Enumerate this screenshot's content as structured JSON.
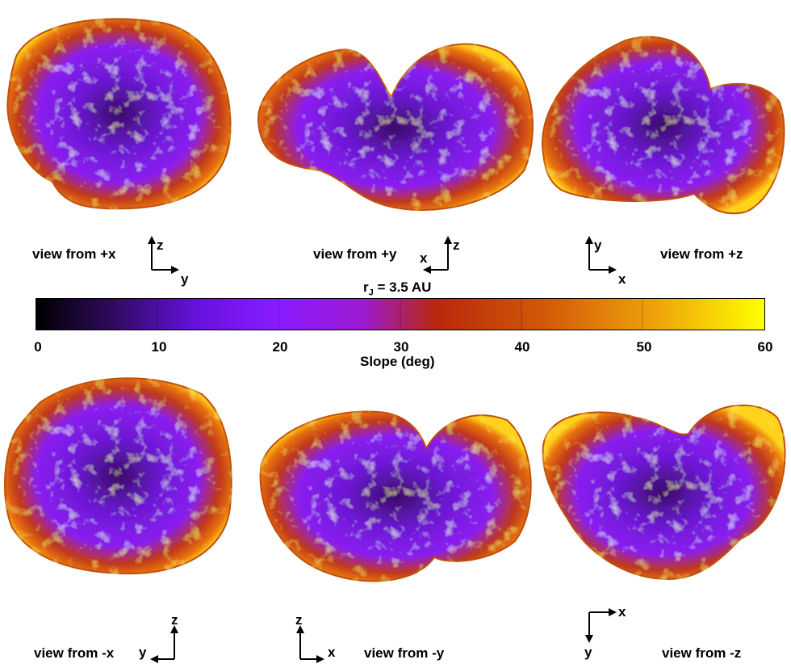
{
  "colorbar": {
    "title_main": "r",
    "title_sub": "J",
    "title_rest": " = 3.5 AU",
    "xlabel": "Slope (deg)",
    "ticks": [
      "0",
      "10",
      "20",
      "30",
      "40",
      "50",
      "60"
    ],
    "colors": [
      "#000000",
      "#3a0a6e",
      "#7a17ff",
      "#9b1ae0",
      "#b7281a",
      "#e26a0a",
      "#ffff00"
    ]
  },
  "views": [
    {
      "label": "view from +x",
      "ax_h": "y",
      "ax_v": "z"
    },
    {
      "label": "view from +y",
      "ax_h": "x",
      "ax_v": "z"
    },
    {
      "label": "view from +z",
      "ax_h": "x",
      "ax_v": "y"
    },
    {
      "label": "view from -x",
      "ax_h": "y",
      "ax_v": "z"
    },
    {
      "label": "view from -y",
      "ax_h": "x",
      "ax_v": "z"
    },
    {
      "label": "view from -z",
      "ax_h": "x",
      "ax_v": "y"
    }
  ]
}
